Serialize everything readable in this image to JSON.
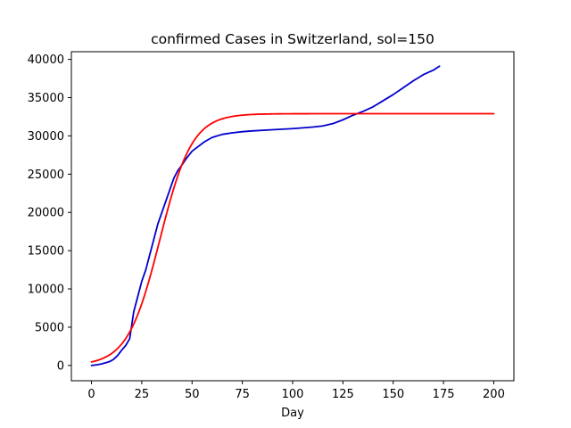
{
  "chart_data": {
    "type": "line",
    "title": "confirmed Cases in Switzerland, sol=150",
    "xlabel": "Day",
    "ylabel": "",
    "xlim": [
      -10,
      210
    ],
    "ylim": [
      -2000,
      41000
    ],
    "xticks": [
      0,
      25,
      50,
      75,
      100,
      125,
      150,
      175,
      200
    ],
    "yticks": [
      0,
      5000,
      10000,
      15000,
      20000,
      25000,
      30000,
      35000,
      40000
    ],
    "grid": false,
    "legend": "none",
    "series": [
      {
        "color": "#0000cd",
        "x": [
          0,
          3,
          5,
          7,
          9,
          11,
          13,
          15,
          17,
          19,
          21,
          23,
          25,
          27,
          29,
          31,
          33,
          35,
          37,
          39,
          41,
          43,
          45,
          47,
          50,
          53,
          56,
          60,
          65,
          70,
          75,
          80,
          90,
          100,
          110,
          115,
          120,
          125,
          130,
          135,
          140,
          145,
          150,
          155,
          160,
          165,
          170,
          173
        ],
        "y": [
          0,
          100,
          200,
          350,
          500,
          800,
          1300,
          2000,
          2600,
          3500,
          7000,
          9000,
          11000,
          12500,
          14500,
          16500,
          18500,
          20000,
          21500,
          23000,
          24500,
          25500,
          26200,
          27000,
          28000,
          28600,
          29200,
          29800,
          30200,
          30400,
          30550,
          30650,
          30800,
          30950,
          31150,
          31300,
          31600,
          32100,
          32700,
          33200,
          33800,
          34600,
          35400,
          36300,
          37200,
          38000,
          38600,
          39100
        ]
      },
      {
        "color": "#ff0000",
        "model": {
          "L": 32900,
          "k": 0.125,
          "x0": 34
        },
        "x_range": [
          0,
          200
        ]
      }
    ]
  }
}
